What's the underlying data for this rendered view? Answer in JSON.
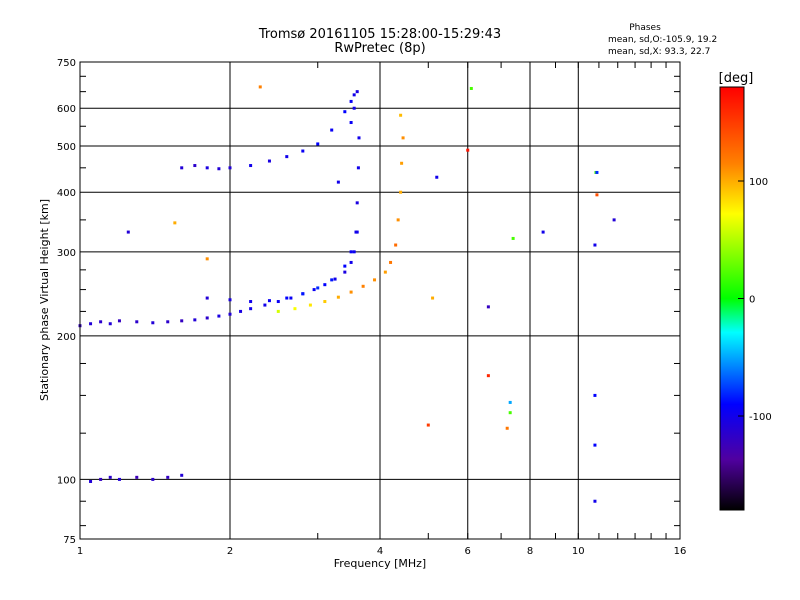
{
  "chart_data": {
    "type": "scatter",
    "title": "Tromsø 20161105 15:28:00-15:29:43",
    "subtitle": "RwPretec (8p)",
    "xlabel": "Frequency [MHz]",
    "ylabel": "Stationary phase Virtual Height [km]",
    "x_scale": "log2",
    "y_scale": "log",
    "xlim": [
      1,
      16
    ],
    "ylim": [
      75,
      750
    ],
    "x_ticks": [
      1,
      2,
      4,
      6,
      8,
      10,
      16
    ],
    "x_tick_labels": [
      "1",
      "2",
      "4",
      "6",
      "8",
      "10",
      "16"
    ],
    "y_ticks": [
      75,
      100,
      200,
      300,
      400,
      500,
      600,
      750
    ],
    "y_tick_labels": [
      "75",
      "100",
      "200",
      "300",
      "400",
      "500",
      "600",
      "750"
    ],
    "grid": true,
    "legend": {
      "title": "Phases",
      "lines": [
        "mean, sd,O:-105.9, 19.2",
        "mean, sd,X:  93.3, 22.7"
      ],
      "placement": "top-right"
    },
    "colorbar": {
      "label": "[deg]",
      "range": [
        -180,
        180
      ],
      "ticks": [
        100,
        0,
        -100
      ],
      "tick_labels": [
        "100",
        "0",
        "-100"
      ],
      "colors": [
        "#ff0000",
        "#ff8000",
        "#ffff00",
        "#00ff00",
        "#00ffff",
        "#0000ff",
        "#5000a0",
        "#000000"
      ]
    },
    "series": [
      {
        "x": [
          1.0,
          1.05,
          1.1,
          1.15,
          1.2,
          1.3,
          1.4,
          1.5,
          1.6,
          1.7,
          1.8,
          1.9,
          2.0,
          2.1,
          2.2,
          2.35,
          2.5,
          2.65,
          2.8,
          2.95,
          3.1,
          3.25,
          3.4,
          3.5,
          3.55,
          3.58,
          3.6,
          3.62,
          3.63
        ],
        "y": [
          210,
          212,
          214,
          212,
          215,
          214,
          213,
          214,
          215,
          216,
          218,
          220,
          222,
          225,
          228,
          232,
          236,
          240,
          245,
          250,
          256,
          263,
          272,
          285,
          300,
          330,
          380,
          450,
          520
        ],
        "phase": [
          -120,
          -110,
          -115,
          -110,
          -120,
          -115,
          -110,
          -115,
          -120,
          -110,
          -115,
          -105,
          -110,
          -105,
          -100,
          -100,
          -95,
          -95,
          -90,
          -95,
          -90,
          -100,
          -105,
          -100,
          -95,
          -100,
          -105,
          -100,
          -100
        ]
      },
      {
        "x": [
          1.6,
          1.7,
          1.8,
          1.9,
          2.0,
          2.2,
          2.4,
          2.6,
          2.8,
          3.0,
          3.2,
          3.4,
          3.5,
          3.55,
          3.6,
          3.55,
          3.5
        ],
        "y": [
          450,
          455,
          450,
          448,
          450,
          455,
          465,
          475,
          488,
          505,
          540,
          590,
          620,
          640,
          650,
          600,
          560
        ],
        "phase": [
          -110,
          -115,
          -105,
          -110,
          -110,
          -100,
          -105,
          -100,
          -95,
          -90,
          -95,
          -90,
          -95,
          -100,
          -105,
          -100,
          -95
        ]
      },
      {
        "x": [
          1.8,
          2.0,
          2.2,
          2.4,
          2.6,
          2.8,
          3.0,
          3.2,
          3.4,
          3.5,
          3.6
        ],
        "y": [
          240,
          238,
          236,
          237,
          240,
          245,
          252,
          262,
          280,
          300,
          330
        ],
        "phase": [
          -110,
          -105,
          -100,
          -95,
          -90,
          -85,
          -80,
          -85,
          -90,
          -95,
          -100
        ]
      },
      {
        "x": [
          2.5,
          2.7,
          2.9,
          3.1,
          3.3,
          3.5,
          3.7,
          3.9,
          4.1,
          4.2,
          4.3,
          4.35,
          4.4,
          4.42,
          4.45,
          4.4
        ],
        "y": [
          225,
          228,
          232,
          236,
          241,
          247,
          254,
          262,
          272,
          285,
          310,
          350,
          400,
          460,
          520,
          580
        ],
        "phase": [
          60,
          70,
          80,
          90,
          100,
          110,
          115,
          110,
          105,
          120,
          125,
          110,
          100,
          105,
          110,
          95
        ]
      },
      {
        "x": [
          1.05,
          1.1,
          1.15,
          1.2,
          1.3,
          1.4,
          1.5,
          1.6
        ],
        "y": [
          99,
          100,
          101,
          100,
          101,
          100,
          101,
          102
        ],
        "phase": [
          -110,
          -120,
          -115,
          -110,
          -125,
          -115,
          -120,
          -110
        ]
      },
      {
        "x": [
          1.25,
          1.55,
          1.8,
          2.3,
          3.3,
          5.1,
          6.1,
          6.6,
          7.4,
          8.5,
          10.8,
          10.9,
          10.85,
          11.8,
          10.8,
          7.3,
          6.6,
          7.2,
          7.3,
          10.8,
          10.8,
          5.0,
          5.2,
          6.0,
          10.9
        ],
        "y": [
          330,
          345,
          290,
          665,
          420,
          240,
          660,
          230,
          320,
          330,
          310,
          395,
          440,
          350,
          150,
          145,
          165,
          128,
          138,
          118,
          90,
          130,
          430,
          490,
          440
        ],
        "phase": [
          -110,
          100,
          110,
          115,
          -100,
          100,
          20,
          -120,
          20,
          -100,
          -100,
          140,
          20,
          -110,
          -90,
          -50,
          160,
          120,
          20,
          -90,
          -100,
          150,
          -100,
          170,
          -80
        ]
      }
    ]
  }
}
